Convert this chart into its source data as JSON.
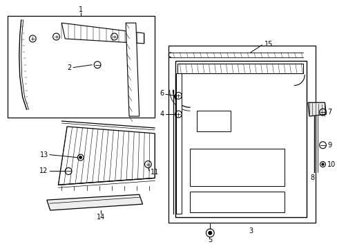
{
  "background_color": "#ffffff",
  "fig_width": 4.89,
  "fig_height": 3.6,
  "dpi": 100
}
